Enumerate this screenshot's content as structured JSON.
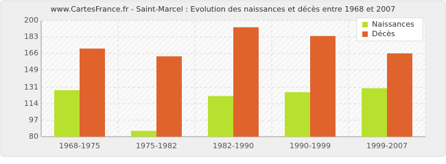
{
  "chart_data": {
    "type": "bar",
    "title": "www.CartesFrance.fr - Saint-Marcel : Evolution des naissances et décès entre 1968 et 2007",
    "categories": [
      "1968-1975",
      "1975-1982",
      "1982-1990",
      "1990-1999",
      "1999-2007"
    ],
    "series": [
      {
        "name": "Naissances",
        "color": "#b8e02e",
        "values": [
          128,
          86,
          122,
          126,
          130
        ]
      },
      {
        "name": "Décès",
        "color": "#e0622d",
        "values": [
          171,
          163,
          193,
          184,
          166
        ]
      }
    ],
    "ylim": [
      80,
      200
    ],
    "yticks": [
      80,
      97,
      114,
      131,
      149,
      166,
      183,
      200
    ],
    "grid": true,
    "legend": "top-right"
  }
}
